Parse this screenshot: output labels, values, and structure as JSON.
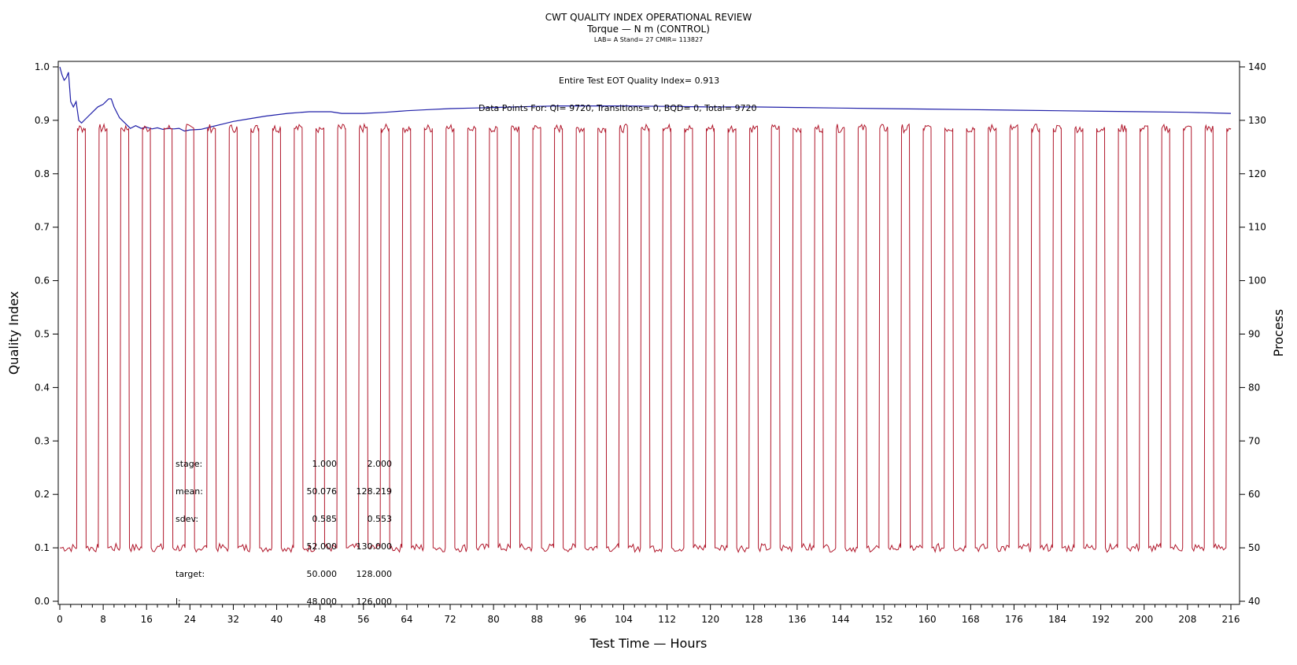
{
  "chart_data": {
    "type": "line",
    "title": "CWT QUALITY INDEX OPERATIONAL REVIEW",
    "subtitle": "Torque — N m (CONTROL)",
    "subsubtitle": "LAB= A Stand= 27 CMIR= 113827",
    "xlabel": "Test Time — Hours",
    "ylabel_left": "Quality Index",
    "ylabel_right": "Process",
    "xlim": [
      0,
      216
    ],
    "ylim_left": [
      0.0,
      1.0
    ],
    "ylim_right": [
      40,
      140
    ],
    "x_ticks": [
      "0",
      "8",
      "16",
      "24",
      "32",
      "40",
      "48",
      "56",
      "64",
      "72",
      "80",
      "88",
      "96",
      "104",
      "112",
      "120",
      "128",
      "136",
      "144",
      "152",
      "160",
      "168",
      "176",
      "184",
      "192",
      "200",
      "208",
      "216"
    ],
    "y_left_ticks": [
      "0.0",
      "0.1",
      "0.2",
      "0.3",
      "0.4",
      "0.5",
      "0.6",
      "0.7",
      "0.8",
      "0.9",
      "1.0"
    ],
    "y_right_ticks": [
      "40",
      "50",
      "60",
      "70",
      "80",
      "90",
      "100",
      "110",
      "120",
      "130",
      "140"
    ],
    "grid": false,
    "annotations": {
      "quality_index": "Entire Test EOT Quality Index=   0.913",
      "data_points": "Data Points For: QI=  9720, Transitions=     0, BQD=     0, Total=  9720"
    },
    "stats_table": {
      "rows": [
        {
          "label": "stage:",
          "v1": "1.000",
          "v2": "2.000"
        },
        {
          "label": "mean:",
          "v1": "50.076",
          "v2": "128.219"
        },
        {
          "label": "sdev:",
          "v1": "0.585",
          "v2": "0.553"
        },
        {
          "label": "",
          "v1": "52.000",
          "v2": "130.000"
        },
        {
          "label": "target:",
          "v1": "50.000",
          "v2": "128.000"
        },
        {
          "label": "l:",
          "v1": "48.000",
          "v2": "126.000"
        }
      ]
    },
    "series": [
      {
        "name": "Quality Index",
        "axis": "left",
        "color": "#1f1fa8",
        "points": [
          [
            0,
            1.0
          ],
          [
            0.4,
            0.985
          ],
          [
            0.8,
            0.975
          ],
          [
            1.2,
            0.98
          ],
          [
            1.6,
            0.99
          ],
          [
            2,
            0.935
          ],
          [
            2.5,
            0.925
          ],
          [
            3,
            0.935
          ],
          [
            3.5,
            0.9
          ],
          [
            4,
            0.895
          ],
          [
            5,
            0.905
          ],
          [
            6,
            0.915
          ],
          [
            7,
            0.925
          ],
          [
            8,
            0.93
          ],
          [
            9,
            0.94
          ],
          [
            9.5,
            0.94
          ],
          [
            10,
            0.925
          ],
          [
            11,
            0.905
          ],
          [
            12,
            0.895
          ],
          [
            13,
            0.885
          ],
          [
            14,
            0.89
          ],
          [
            15,
            0.885
          ],
          [
            16,
            0.887
          ],
          [
            17,
            0.884
          ],
          [
            18,
            0.886
          ],
          [
            19,
            0.883
          ],
          [
            20,
            0.885
          ],
          [
            21,
            0.884
          ],
          [
            22,
            0.885
          ],
          [
            23,
            0.88
          ],
          [
            24,
            0.882
          ],
          [
            26,
            0.883
          ],
          [
            28,
            0.888
          ],
          [
            30,
            0.893
          ],
          [
            32,
            0.898
          ],
          [
            35,
            0.903
          ],
          [
            38,
            0.908
          ],
          [
            42,
            0.913
          ],
          [
            46,
            0.916
          ],
          [
            50,
            0.916
          ],
          [
            52,
            0.913
          ],
          [
            56,
            0.913
          ],
          [
            60,
            0.915
          ],
          [
            64,
            0.918
          ],
          [
            68,
            0.92
          ],
          [
            72,
            0.922
          ],
          [
            76,
            0.923
          ],
          [
            80,
            0.924
          ],
          [
            84,
            0.925
          ],
          [
            88,
            0.926
          ],
          [
            92,
            0.927
          ],
          [
            96,
            0.927
          ],
          [
            104,
            0.927
          ],
          [
            112,
            0.926
          ],
          [
            120,
            0.925
          ],
          [
            128,
            0.925
          ],
          [
            136,
            0.924
          ],
          [
            144,
            0.923
          ],
          [
            152,
            0.922
          ],
          [
            160,
            0.921
          ],
          [
            168,
            0.92
          ],
          [
            176,
            0.919
          ],
          [
            184,
            0.918
          ],
          [
            192,
            0.917
          ],
          [
            200,
            0.916
          ],
          [
            208,
            0.915
          ],
          [
            216,
            0.913
          ]
        ]
      },
      {
        "name": "Process",
        "axis": "right",
        "color": "#b0162a",
        "low_level": 50,
        "high_level": 128.5,
        "high_start_hours": [
          3.1,
          7.1,
          11.1,
          15.1,
          19.1,
          23.1,
          27.1,
          31.1,
          35.1,
          39.1,
          43.1,
          47.1,
          51.1,
          55.1,
          59.1,
          63.1,
          67.1,
          71.1,
          75.1,
          79.1,
          83.1,
          87.1,
          91.1,
          95.1,
          99.1,
          103.1,
          107.1,
          111.1,
          115.1,
          119.1,
          123.1,
          127.1,
          131.1,
          135.1,
          139.1,
          143.1,
          147.1,
          151.1,
          155.1,
          159.1,
          163.1,
          167.1,
          171.1,
          175.1,
          179.1,
          183.1,
          187.1,
          191.1,
          195.1,
          199.1,
          203.1,
          207.1,
          211.1,
          215.1
        ],
        "high_duration_hours": 1.6
      }
    ]
  }
}
